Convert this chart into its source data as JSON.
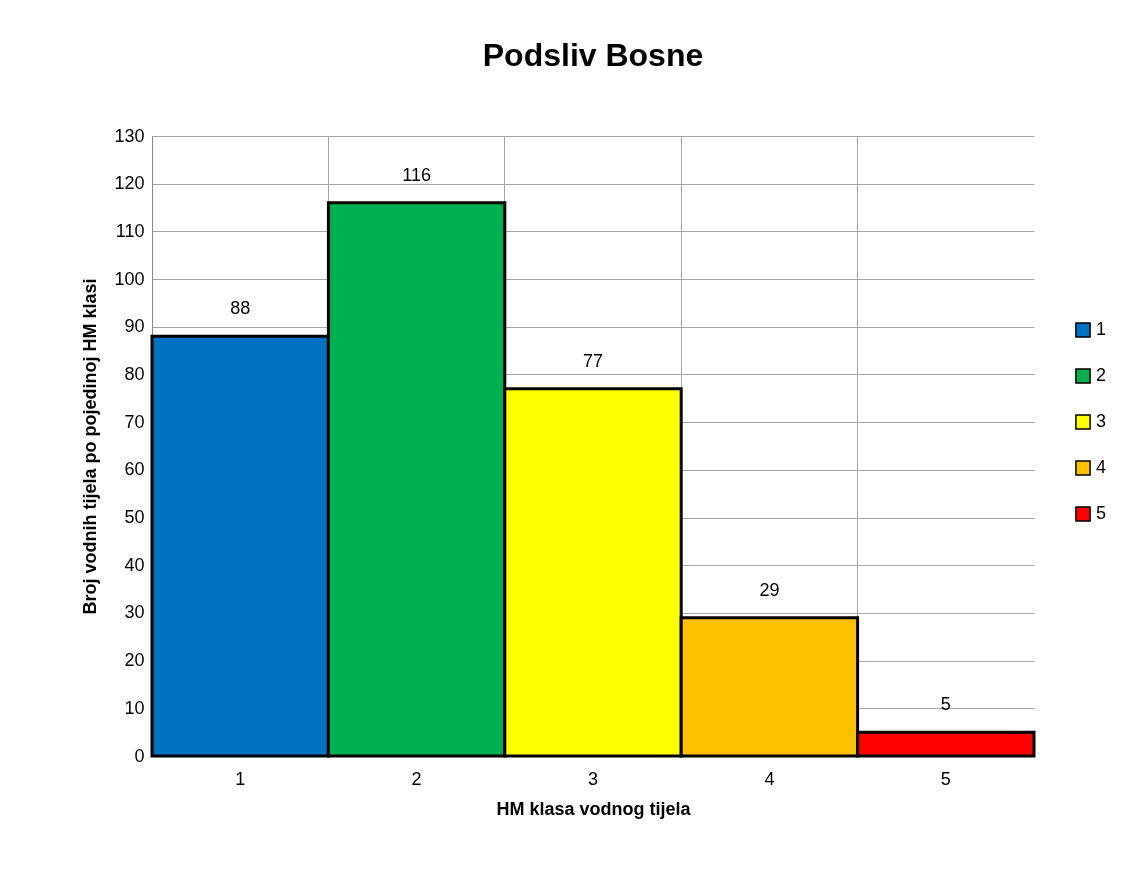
{
  "chart_data": {
    "type": "bar",
    "title": "Podsliv Bosne",
    "xlabel": "HM klasa vodnog tijela",
    "ylabel": "Broj vodnih tijela po pojedinoj HM klasi",
    "categories": [
      "1",
      "2",
      "3",
      "4",
      "5"
    ],
    "series": [
      {
        "name": "1",
        "color": "#0070c0",
        "values": [
          88,
          null,
          null,
          null,
          null
        ]
      },
      {
        "name": "2",
        "color": "#00b050",
        "values": [
          null,
          116,
          null,
          null,
          null
        ]
      },
      {
        "name": "3",
        "color": "#ffff00",
        "values": [
          null,
          null,
          77,
          null,
          null
        ]
      },
      {
        "name": "4",
        "color": "#ffc000",
        "values": [
          null,
          null,
          null,
          29,
          null
        ]
      },
      {
        "name": "5",
        "color": "#ff0000",
        "values": [
          null,
          null,
          null,
          null,
          5
        ]
      }
    ],
    "ylim": [
      0,
      130
    ],
    "yticks": [
      0,
      10,
      20,
      30,
      40,
      50,
      60,
      70,
      80,
      90,
      100,
      110,
      120,
      130
    ],
    "grid": true,
    "legend": "right",
    "data_labels": true
  }
}
